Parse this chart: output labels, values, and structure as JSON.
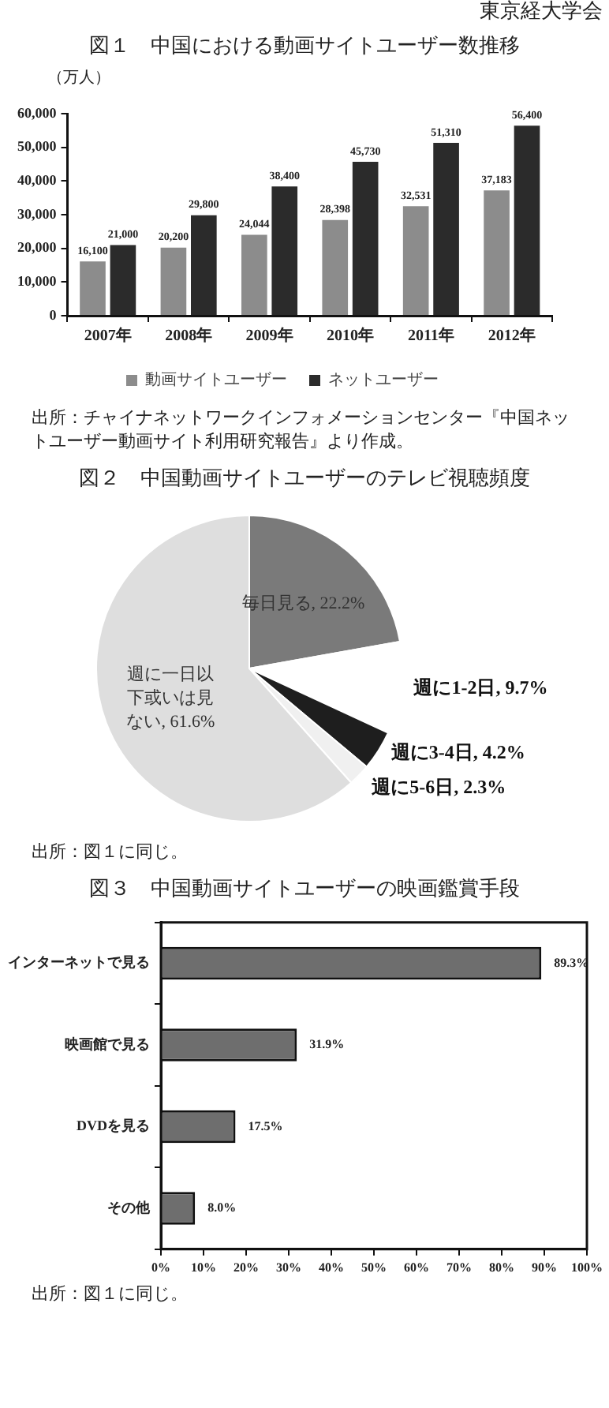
{
  "chart_data": [
    {
      "type": "bar",
      "title": "図１　中国における動画サイトユーザー数推移",
      "ylabel": "（万人）",
      "categories": [
        "2007年",
        "2008年",
        "2009年",
        "2010年",
        "2011年",
        "2012年"
      ],
      "series": [
        {
          "name": "動画サイトユーザー",
          "color": "#8c8c8c",
          "values": [
            16100,
            20200,
            24044,
            28398,
            32531,
            37183
          ],
          "value_labels": [
            "16,100",
            "20,200",
            "24,044",
            "28,398",
            "32,531",
            "37,183"
          ]
        },
        {
          "name": "ネットユーザー",
          "color": "#2b2b2b",
          "values": [
            21000,
            29800,
            38400,
            45730,
            51310,
            56400
          ],
          "value_labels": [
            "21,000",
            "29,800",
            "38,400",
            "45,730",
            "51,310",
            "56,400"
          ]
        }
      ],
      "ylim": [
        0,
        60000
      ],
      "yticks": [
        {
          "value": 0,
          "label": "0"
        },
        {
          "value": 10000,
          "label": "10,000"
        },
        {
          "value": 20000,
          "label": "20,000"
        },
        {
          "value": 30000,
          "label": "30,000"
        },
        {
          "value": 40000,
          "label": "40,000"
        },
        {
          "value": 50000,
          "label": "50,000"
        },
        {
          "value": 60000,
          "label": "60,000"
        }
      ],
      "legend": "bottom",
      "grid": false,
      "annotations": [
        "東京経大学会",
        "出所：チャイナネットワークインフォメーションセンター『中国ネットユーザー動画サイト利用研究報告』より作成。"
      ]
    },
    {
      "type": "pie",
      "title": "図２　中国動画サイトユーザーのテレビ視聴頻度",
      "categories": [
        "毎日見る",
        "週に1-2日",
        "週に3-4日",
        "週に5-6日",
        "週に一日以下或いは見ない"
      ],
      "values": [
        22.2,
        9.7,
        4.2,
        2.3,
        61.6
      ],
      "colors": [
        "#7a7a7a",
        "#ffffff",
        "#1e1e1e",
        "#f0f0f0",
        "#dedede"
      ],
      "value_labels": [
        "22.2%",
        "9.7%",
        "4.2%",
        "2.3%",
        "61.6%"
      ],
      "legend": false,
      "annotations": [
        "出所：図１に同じ。"
      ]
    },
    {
      "type": "bar",
      "orientation": "horizontal",
      "title": "図３　中国動画サイトユーザーの映画鑑賞手段",
      "categories": [
        "インターネットで見る",
        "映画館で見る",
        "DVDを見る",
        "その他"
      ],
      "values": [
        89.3,
        31.9,
        17.5,
        8.0
      ],
      "color": "#6e6e6e",
      "value_labels": [
        "89.3%",
        "31.9%",
        "17.5%",
        "8.0%"
      ],
      "xlim": [
        0,
        100
      ],
      "xticks": [
        {
          "value": 0,
          "label": "0%"
        },
        {
          "value": 10,
          "label": "10%"
        },
        {
          "value": 20,
          "label": "20%"
        },
        {
          "value": 30,
          "label": "30%"
        },
        {
          "value": 40,
          "label": "40%"
        },
        {
          "value": 50,
          "label": "50%"
        },
        {
          "value": 60,
          "label": "60%"
        },
        {
          "value": 70,
          "label": "70%"
        },
        {
          "value": 80,
          "label": "80%"
        },
        {
          "value": 90,
          "label": "90%"
        },
        {
          "value": 100,
          "label": "100%"
        }
      ],
      "legend": false,
      "grid": false,
      "annotations": [
        "出所：図１に同じ。"
      ]
    }
  ]
}
